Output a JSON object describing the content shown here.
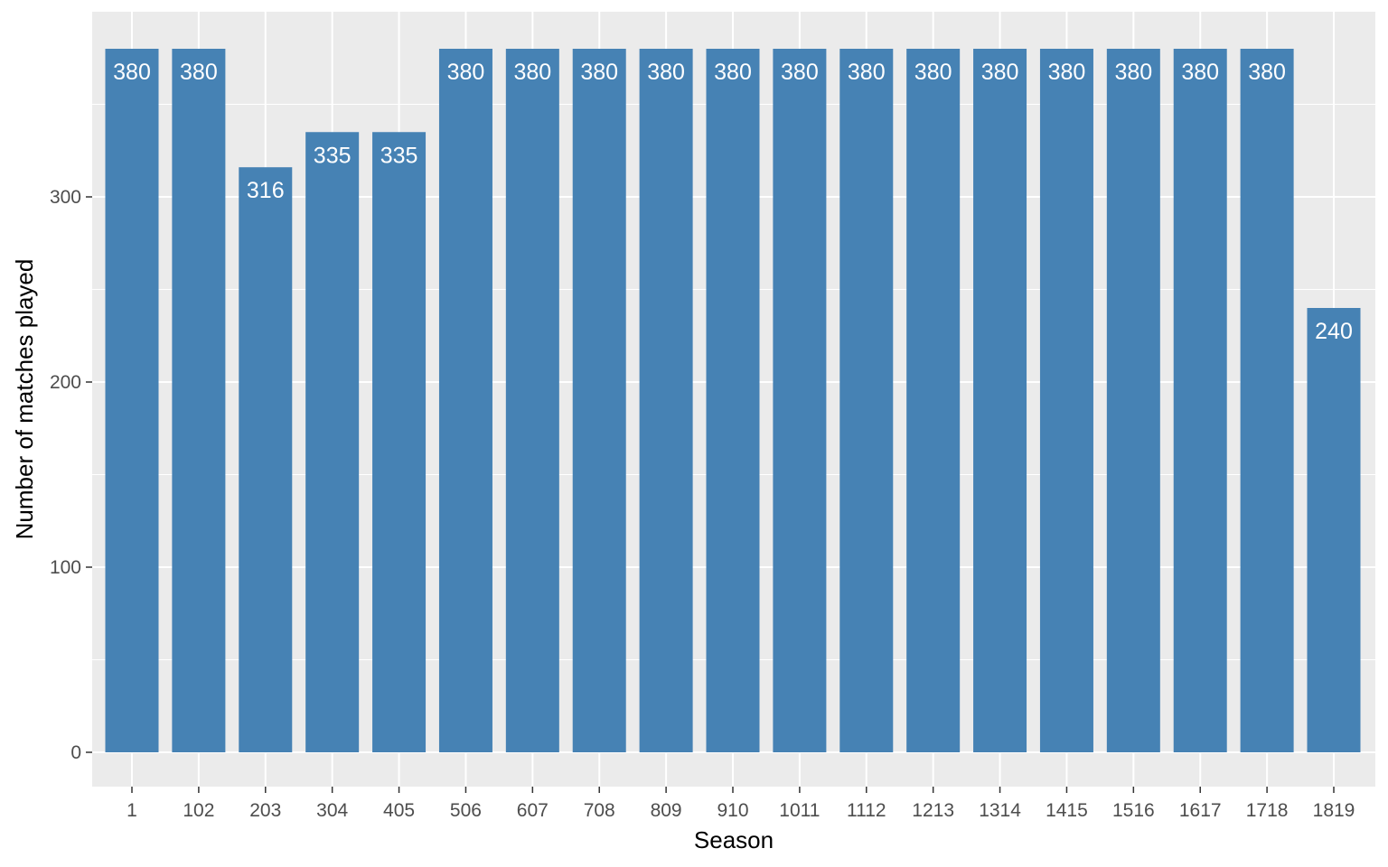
{
  "chart_data": {
    "type": "bar",
    "xlabel": "Season",
    "ylabel": "Number of matches played",
    "ylim": [
      0,
      400
    ],
    "yticks": [
      0,
      100,
      200,
      300
    ],
    "grid": true,
    "legend": "none",
    "categories": [
      "1",
      "102",
      "203",
      "304",
      "405",
      "506",
      "607",
      "708",
      "809",
      "910",
      "1011",
      "1112",
      "1213",
      "1314",
      "1415",
      "1516",
      "1617",
      "1718",
      "1819"
    ],
    "values": [
      380,
      380,
      316,
      335,
      335,
      380,
      380,
      380,
      380,
      380,
      380,
      380,
      380,
      380,
      380,
      380,
      380,
      380,
      240
    ],
    "data_labels": [
      "380",
      "380",
      "316",
      "335",
      "335",
      "380",
      "380",
      "380",
      "380",
      "380",
      "380",
      "380",
      "380",
      "380",
      "380",
      "380",
      "380",
      "380",
      "240"
    ],
    "colors": {
      "bar": "#4682b4",
      "panel": "#ebebeb",
      "grid": "#ffffff"
    }
  }
}
